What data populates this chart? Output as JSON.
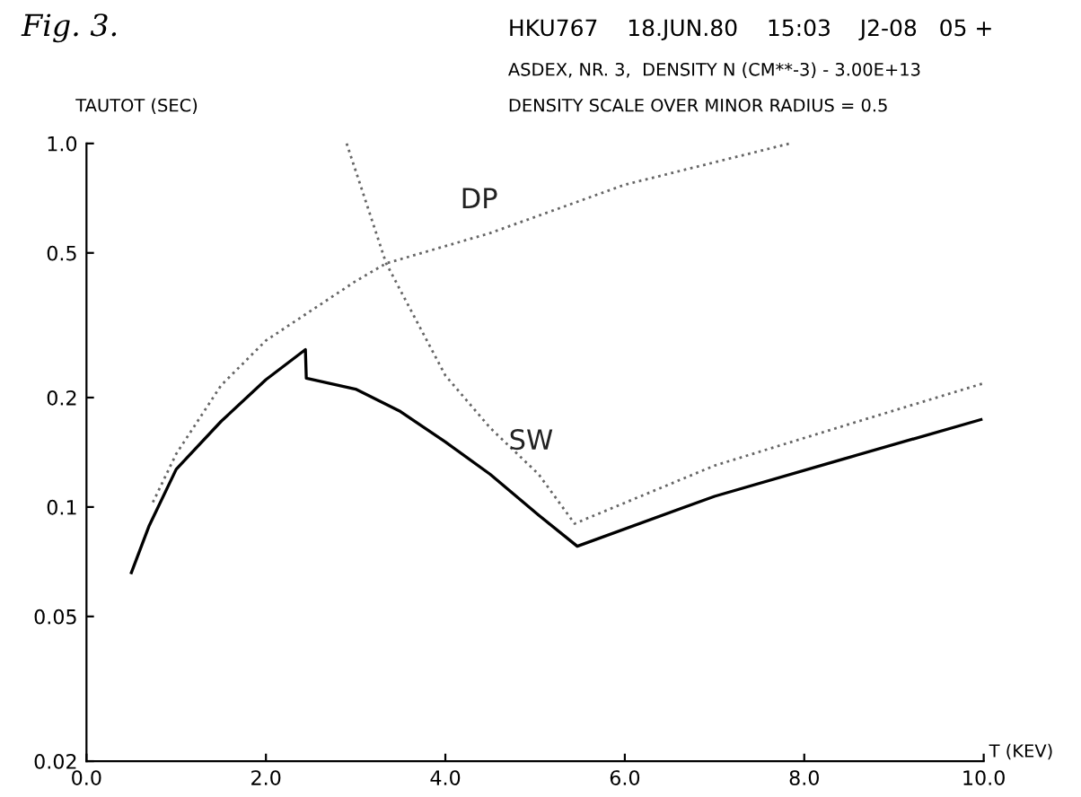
{
  "chart_data": {
    "type": "line",
    "title": "Fig. 3.",
    "subtitle": "HKU767    18.JUN.80    15:03    J2-08   05 +",
    "annotations": [
      "ASDEX, NR. 3,  DENSITY N (CM**-3) - 3.00E+13",
      "DENSITY SCALE OVER MINOR RADIUS = 0.5"
    ],
    "xlabel": "T (KEV)",
    "ylabel": "TAUTOT (SEC)",
    "log": "y",
    "grid": false,
    "legend": false,
    "xlim": [
      0,
      10
    ],
    "ylim": [
      0.02,
      1.0
    ],
    "xticks": [
      {
        "value": 0,
        "label": "0.0"
      },
      {
        "value": 2,
        "label": "2.0"
      },
      {
        "value": 4,
        "label": "4.0"
      },
      {
        "value": 6,
        "label": "6.0"
      },
      {
        "value": 8,
        "label": "8.0"
      },
      {
        "value": 10,
        "label": "10.0"
      }
    ],
    "yticks": [
      0.02,
      0.05,
      0.1,
      0.2,
      0.5,
      {
        "value": 1.0,
        "label": "1.0"
      }
    ],
    "series": [
      {
        "color": "#000000",
        "line_style": "solid",
        "x": [
          0.5,
          0.7,
          1.0,
          1.5,
          2.0,
          2.44,
          2.45,
          3.0,
          3.5,
          4.0,
          4.5,
          5.04,
          5.47,
          7.0,
          8.5,
          9.97
        ],
        "values": [
          0.066,
          0.089,
          0.127,
          0.172,
          0.224,
          0.271,
          0.226,
          0.211,
          0.183,
          0.151,
          0.123,
          0.095,
          0.078,
          0.107,
          0.137,
          0.174
        ]
      },
      {
        "name": "DP",
        "color": "#666666",
        "line_style": "dotted",
        "x": [
          0.74,
          1.0,
          1.5,
          2.0,
          3.0,
          3.34,
          4.5,
          6.0,
          7.84
        ],
        "values": [
          0.103,
          0.14,
          0.216,
          0.287,
          0.418,
          0.468,
          0.567,
          0.77,
          1.0
        ]
      },
      {
        "name": "SW",
        "color": "#666666",
        "line_style": "dotted",
        "x": [
          2.9,
          3.34,
          4.0,
          4.5,
          5.04,
          5.44,
          7.0,
          8.5,
          10.0
        ],
        "values": [
          1.0,
          0.468,
          0.23,
          0.165,
          0.123,
          0.09,
          0.13,
          0.169,
          0.219
        ]
      }
    ]
  }
}
